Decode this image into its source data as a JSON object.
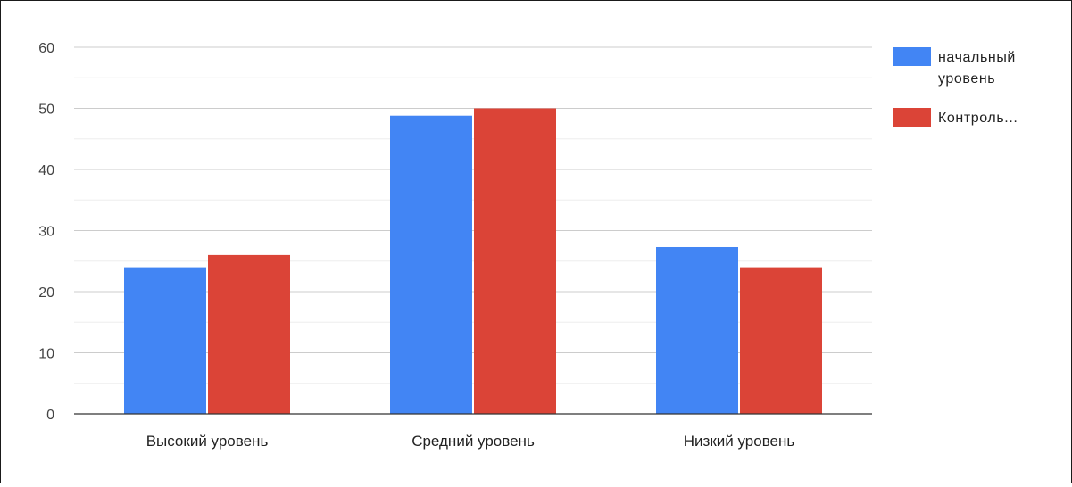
{
  "chart_data": {
    "type": "bar",
    "title": "",
    "xlabel": "",
    "ylabel": "",
    "categories": [
      "Высокий уровень",
      "Средний уровень",
      "Низкий уровень"
    ],
    "series": [
      {
        "name": "начальный уровень",
        "legend_label": [
          "начальный",
          "уровень"
        ],
        "color": "#4285f4",
        "values": [
          24,
          48.8,
          27.3
        ]
      },
      {
        "name": "Контроль...",
        "legend_label": [
          "Контроль..."
        ],
        "color": "#db4437",
        "values": [
          26,
          50,
          24
        ]
      }
    ],
    "ylim": [
      0,
      60
    ],
    "yticks": [
      0,
      10,
      20,
      30,
      40,
      50,
      60
    ],
    "grid": true,
    "legend_position": "right-top"
  }
}
